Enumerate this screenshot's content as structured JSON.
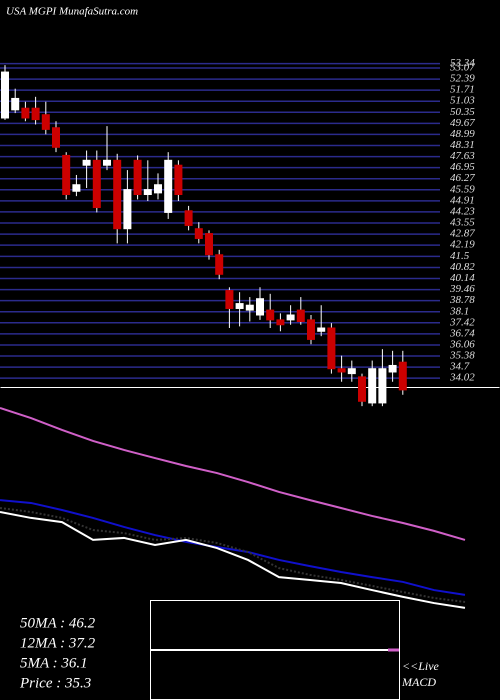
{
  "header": {
    "title": "USA MGPI MunafaSutra.com"
  },
  "chart_data": [
    {
      "type": "candlestick",
      "open": [
        50.0,
        50.5,
        50.6,
        50.6,
        50.2,
        49.4,
        47.7,
        45.5,
        47.1,
        47.4,
        47.1,
        47.4,
        43.2,
        47.4,
        45.3,
        45.4,
        44.2,
        47.1,
        44.3,
        43.2,
        42.9,
        41.6,
        39.4,
        38.3,
        38.2,
        37.9,
        38.2,
        37.6,
        37.6,
        38.2,
        37.6,
        36.9,
        37.1,
        34.6,
        34.3,
        34.1,
        32.5,
        32.5,
        34.4,
        35.0
      ],
      "high": [
        53.25,
        51.8,
        51.0,
        51.3,
        51.0,
        49.8,
        47.9,
        46.5,
        48.0,
        48.0,
        49.5,
        47.8,
        46.8,
        47.7,
        47.4,
        46.6,
        47.9,
        47.4,
        44.6,
        43.6,
        43.1,
        41.9,
        39.6,
        39.3,
        39.0,
        39.6,
        39.2,
        38.0,
        38.5,
        39.0,
        37.9,
        38.5,
        37.4,
        35.4,
        35.1,
        34.3,
        35.1,
        35.8,
        35.7,
        35.7
      ],
      "low": [
        49.88,
        50.3,
        49.8,
        49.6,
        49.0,
        47.9,
        45.0,
        45.2,
        45.7,
        44.2,
        46.8,
        42.3,
        42.3,
        45.0,
        44.9,
        45.0,
        43.8,
        44.9,
        43.1,
        42.3,
        41.3,
        40.1,
        37.1,
        37.2,
        37.5,
        37.6,
        37.1,
        36.9,
        37.3,
        37.3,
        36.1,
        36.6,
        34.3,
        33.8,
        33.8,
        32.3,
        32.3,
        32.3,
        33.8,
        33.0
      ],
      "close": [
        52.82,
        51.2,
        50.0,
        49.9,
        49.3,
        48.2,
        45.3,
        45.9,
        47.4,
        44.5,
        47.4,
        43.2,
        45.6,
        45.3,
        45.6,
        45.9,
        47.4,
        45.3,
        43.4,
        42.6,
        41.6,
        40.4,
        38.3,
        38.6,
        38.5,
        38.9,
        37.6,
        37.3,
        37.9,
        37.5,
        36.4,
        37.1,
        34.6,
        34.4,
        34.6,
        32.6,
        34.6,
        34.6,
        34.8,
        33.3
      ],
      "up_color": "#ffffff",
      "down_color": "#cc0000",
      "grid_color": "#2b2b8c",
      "ylim": [
        33.6,
        53.34
      ],
      "yticks": [
        53.34,
        53.07,
        52.39,
        51.71,
        51.03,
        50.35,
        49.67,
        48.99,
        48.31,
        47.63,
        46.95,
        46.27,
        45.59,
        44.91,
        44.23,
        43.55,
        42.87,
        42.19,
        41.5,
        40.82,
        40.14,
        39.46,
        38.78,
        38.1,
        37.42,
        36.74,
        36.06,
        35.38,
        34.7,
        34.02
      ],
      "grid": true
    },
    {
      "type": "line",
      "ylim": [
        0,
        100
      ],
      "series": [
        {
          "color": "#d060c8",
          "values": [
            96.4,
            91.8,
            86.4,
            81.4,
            77.3,
            73.6,
            70,
            66.8,
            62.7,
            58.2,
            54.5,
            50.9,
            47.3,
            44.1,
            40.5,
            36.4
          ]
        },
        {
          "color": "#1010cc",
          "values": [
            54.5,
            53.2,
            50,
            46.4,
            42.3,
            38.6,
            35.5,
            33.2,
            30.9,
            27.3,
            24.5,
            21.8,
            19.5,
            17.3,
            13.6,
            11.4
          ]
        },
        {
          "color": "#333333",
          "values": [
            50.9,
            49.1,
            46.4,
            40.9,
            39.5,
            36.4,
            37.3,
            35,
            30.9,
            23.6,
            20.5,
            18.2,
            15.5,
            12.7,
            10,
            8.2
          ]
        },
        {
          "color": "#ffffff",
          "values": [
            49.1,
            46.4,
            44.5,
            36.4,
            37.3,
            34.1,
            36.4,
            32.7,
            27.3,
            19.5,
            18.2,
            16.8,
            13.6,
            10.5,
            7.7,
            5.5
          ]
        }
      ]
    }
  ],
  "ma_labels": [
    "50MA : 46.2",
    "12MA : 37.2",
    "5MA : 36.1",
    "Price   : 35.3"
  ],
  "macd": {
    "live": "<<Live",
    "label": "MACD"
  }
}
